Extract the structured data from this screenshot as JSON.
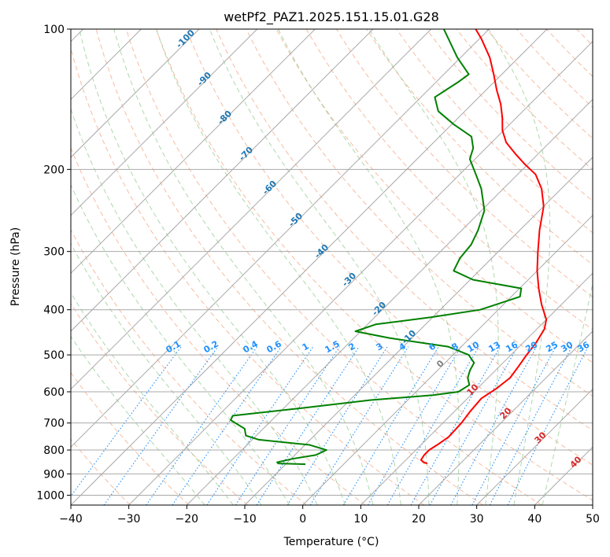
{
  "chart_data": {
    "type": "skew-t",
    "title": "wetPf2_PAZ1.2025.151.15.01.G28",
    "xlabel": "Temperature (°C)",
    "ylabel": "Pressure (hPa)",
    "xlim": [
      -40,
      50
    ],
    "ylim": [
      1050,
      100
    ],
    "y_scale": "log",
    "grid": true,
    "x_ticks": [
      "−40",
      "−30",
      "−20",
      "−10",
      "0",
      "10",
      "20",
      "30",
      "40",
      "50"
    ],
    "y_ticks": [
      "100",
      "200",
      "300",
      "400",
      "500",
      "600",
      "700",
      "800",
      "900",
      "1000"
    ],
    "series": [
      {
        "color": "#ff0000",
        "points_hpa_degc": [
          [
            855,
            14.3
          ],
          [
            850,
            13.5
          ],
          [
            840,
            12.6
          ],
          [
            820,
            12.3
          ],
          [
            800,
            12.3
          ],
          [
            780,
            12.8
          ],
          [
            750,
            13.4
          ],
          [
            700,
            13.2
          ],
          [
            660,
            12.7
          ],
          [
            620,
            12.4
          ],
          [
            590,
            13.3
          ],
          [
            560,
            13.8
          ],
          [
            530,
            13.3
          ],
          [
            500,
            12.7
          ],
          [
            470,
            12.2
          ],
          [
            440,
            11.3
          ],
          [
            420,
            10.0
          ],
          [
            390,
            6.6
          ],
          [
            360,
            3.3
          ],
          [
            330,
            0.0
          ],
          [
            300,
            -3.2
          ],
          [
            270,
            -6.6
          ],
          [
            240,
            -10.0
          ],
          [
            220,
            -13.4
          ],
          [
            205,
            -16.9
          ],
          [
            195,
            -20.5
          ],
          [
            185,
            -24.0
          ],
          [
            175,
            -27.5
          ],
          [
            165,
            -30.2
          ],
          [
            155,
            -32.4
          ],
          [
            145,
            -35.0
          ],
          [
            135,
            -38.2
          ],
          [
            125,
            -41.4
          ],
          [
            115,
            -45.0
          ],
          [
            105,
            -49.6
          ],
          [
            100,
            -52.3
          ]
        ]
      },
      {
        "color": "#008000",
        "points_hpa_degc": [
          [
            858,
            -6.6
          ],
          [
            855,
            -11.4
          ],
          [
            850,
            -11.8
          ],
          [
            835,
            -9.7
          ],
          [
            820,
            -6.4
          ],
          [
            800,
            -5.4
          ],
          [
            780,
            -9.2
          ],
          [
            760,
            -18.9
          ],
          [
            745,
            -21.8
          ],
          [
            720,
            -23.2
          ],
          [
            690,
            -27.1
          ],
          [
            675,
            -27.5
          ],
          [
            650,
            -16.8
          ],
          [
            625,
            -6.4
          ],
          [
            610,
            3.5
          ],
          [
            600,
            7.3
          ],
          [
            580,
            8.0
          ],
          [
            560,
            6.5
          ],
          [
            540,
            5.6
          ],
          [
            520,
            5.0
          ],
          [
            500,
            2.7
          ],
          [
            480,
            -2.3
          ],
          [
            460,
            -13.9
          ],
          [
            445,
            -20.9
          ],
          [
            430,
            -18.6
          ],
          [
            415,
            -10.2
          ],
          [
            400,
            -3.1
          ],
          [
            390,
            -1.3
          ],
          [
            375,
            1.5
          ],
          [
            360,
            0.3
          ],
          [
            345,
            -9.5
          ],
          [
            330,
            -14.4
          ],
          [
            310,
            -15.5
          ],
          [
            290,
            -15.9
          ],
          [
            270,
            -17.2
          ],
          [
            245,
            -19.5
          ],
          [
            220,
            -23.8
          ],
          [
            205,
            -27.2
          ],
          [
            190,
            -30.9
          ],
          [
            180,
            -32.2
          ],
          [
            170,
            -34.5
          ],
          [
            160,
            -39.7
          ],
          [
            150,
            -44.6
          ],
          [
            140,
            -47.6
          ],
          [
            130,
            -46.2
          ],
          [
            125,
            -45.7
          ],
          [
            115,
            -50.6
          ],
          [
            100,
            -57.8
          ]
        ]
      }
    ],
    "dry_adiabat_labels": [
      "-100",
      "-90",
      "-80",
      "-70",
      "-60",
      "-50",
      "-40",
      "-30",
      "-20",
      "-10"
    ],
    "mixing_ratio_labels": [
      "0.1",
      "0.2",
      "0.4",
      "0.6",
      "1",
      "1.5",
      "2",
      "3",
      "4",
      "6",
      "8",
      "10",
      "13",
      "16",
      "20",
      "25",
      "30",
      "36"
    ],
    "moist_adiabat_labels": [
      "0",
      "10",
      "20",
      "30",
      "40"
    ],
    "colors": {
      "temperature": "#ff0000",
      "dewpoint": "#008000",
      "dry_adiabat": "#f4a582",
      "moist_adiabat": "#8ac78a",
      "mixing_ratio": "#1e90ff",
      "isotherm": "#a9a9a9"
    }
  }
}
